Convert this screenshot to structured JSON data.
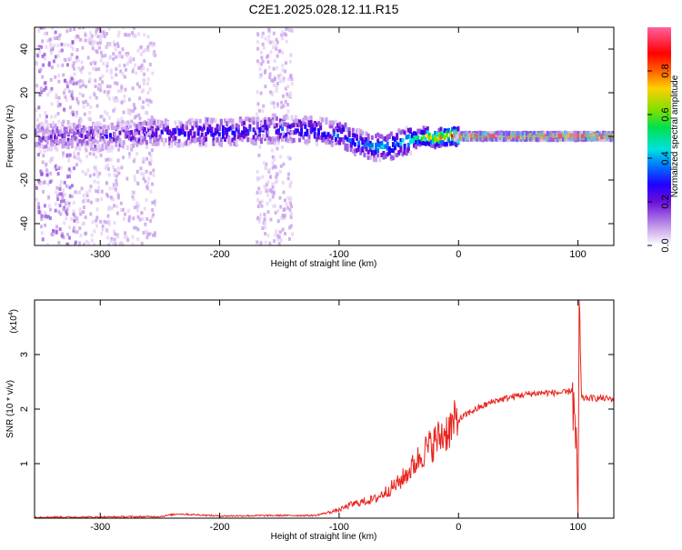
{
  "title": "C2E1.2025.028.12.11.R15",
  "colors": {
    "snr_line": "#e8251f",
    "palette": [
      "#ffffff",
      "#e6d2f5",
      "#c8a0eb",
      "#9b5be0",
      "#6a0fd9",
      "#2000ff",
      "#0070ff",
      "#00e0e0",
      "#00e050",
      "#7fe000",
      "#ffd000",
      "#ff6000",
      "#ff0000",
      "#ff70a0"
    ]
  },
  "chart_data": [
    {
      "type": "heatmap",
      "xlabel": "Height of straight line (km)",
      "ylabel": "Frequency (Hz)",
      "xlim": [
        -355,
        130
      ],
      "ylim": [
        -50,
        50
      ],
      "xticks": [
        -300,
        -200,
        -100,
        0,
        100
      ],
      "yticks": [
        -40,
        -20,
        0,
        20,
        40
      ],
      "colorbar": {
        "label": "Normalized spectral amplitude",
        "range": [
          0,
          1
        ],
        "ticks": [
          0.0,
          0.2,
          0.4,
          0.6,
          0.8
        ]
      },
      "ridge": {
        "x": [
          -345,
          -300,
          -250,
          -200,
          -150,
          -120,
          -100,
          -90,
          -80,
          -70,
          -60,
          -50,
          -40,
          -30,
          -20,
          -10,
          -5,
          0,
          50,
          100,
          130
        ],
        "freq": [
          0,
          0,
          1.5,
          2,
          3,
          2.5,
          1,
          -2,
          -4,
          -5,
          -5,
          -3,
          -1.5,
          0,
          -1,
          0,
          0,
          0,
          0,
          0,
          0
        ],
        "amplitude": [
          0.25,
          0.3,
          0.35,
          0.4,
          0.4,
          0.42,
          0.45,
          0.45,
          0.45,
          0.5,
          0.5,
          0.5,
          0.6,
          0.7,
          0.75,
          0.8,
          0.9,
          0.95,
          0.95,
          0.95,
          0.95
        ]
      },
      "noise_bands_x": [
        [
          -355,
          -255
        ],
        [
          -170,
          -140
        ]
      ]
    },
    {
      "type": "line",
      "xlabel": "Height of straight line (km)",
      "ylabel": "SNR (10 * v/v)",
      "y_multiplier": "(x10",
      "y_multiplier_exp": "4",
      "xlim": [
        -355,
        130
      ],
      "ylim": [
        0,
        4
      ],
      "xticks": [
        -300,
        -200,
        -100,
        0,
        100
      ],
      "yticks": [
        1,
        2,
        3
      ],
      "series": [
        {
          "x": [
            -355,
            -300,
            -250,
            -235,
            -200,
            -150,
            -120,
            -100,
            -90,
            -80,
            -70,
            -60,
            -50,
            -40,
            -30,
            -20,
            -10,
            0,
            10,
            20,
            30,
            40,
            50,
            60,
            70,
            80,
            90,
            95,
            98,
            100,
            101,
            103,
            110,
            120,
            130
          ],
          "values": [
            0.02,
            0.02,
            0.03,
            0.08,
            0.04,
            0.05,
            0.05,
            0.15,
            0.25,
            0.3,
            0.35,
            0.5,
            0.65,
            0.9,
            1.2,
            1.4,
            1.6,
            1.8,
            1.95,
            2.05,
            2.15,
            2.2,
            2.25,
            2.28,
            2.3,
            2.3,
            2.3,
            2.35,
            1.5,
            0.05,
            3.9,
            2.2,
            2.2,
            2.2,
            2.18
          ]
        }
      ]
    }
  ]
}
